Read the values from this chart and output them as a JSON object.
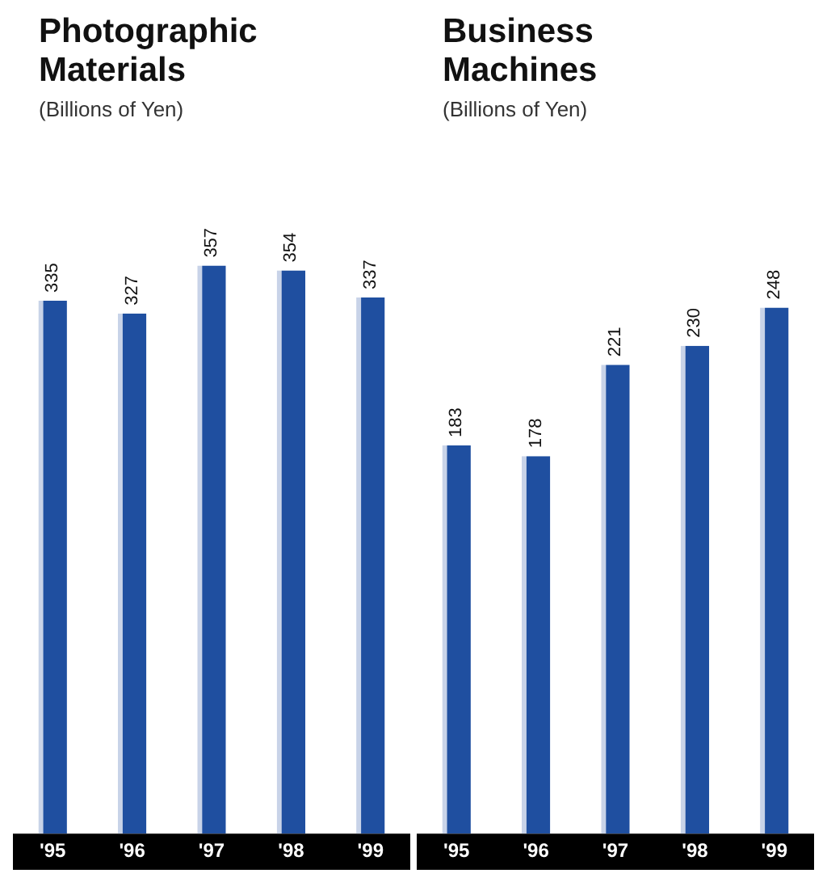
{
  "chart_data": [
    {
      "type": "bar",
      "title": "Photographic Materials",
      "subtitle": "(Billions of Yen)",
      "categories": [
        "'95",
        "'96",
        "'97",
        "'98",
        "'99"
      ],
      "values": [
        335,
        327,
        357,
        354,
        337
      ],
      "color": "#1f4fa0",
      "data_labels": true,
      "grid": false,
      "legend": false,
      "tick_labels": "x"
    },
    {
      "type": "bar",
      "title": "Business Machines",
      "subtitle": "(Billions of Yen)",
      "categories": [
        "'95",
        "'96",
        "'97",
        "'98",
        "'99"
      ],
      "values": [
        183,
        178,
        221,
        230,
        248
      ],
      "color": "#1f4fa0",
      "data_labels": true,
      "grid": false,
      "legend": false,
      "tick_labels": "x"
    }
  ]
}
